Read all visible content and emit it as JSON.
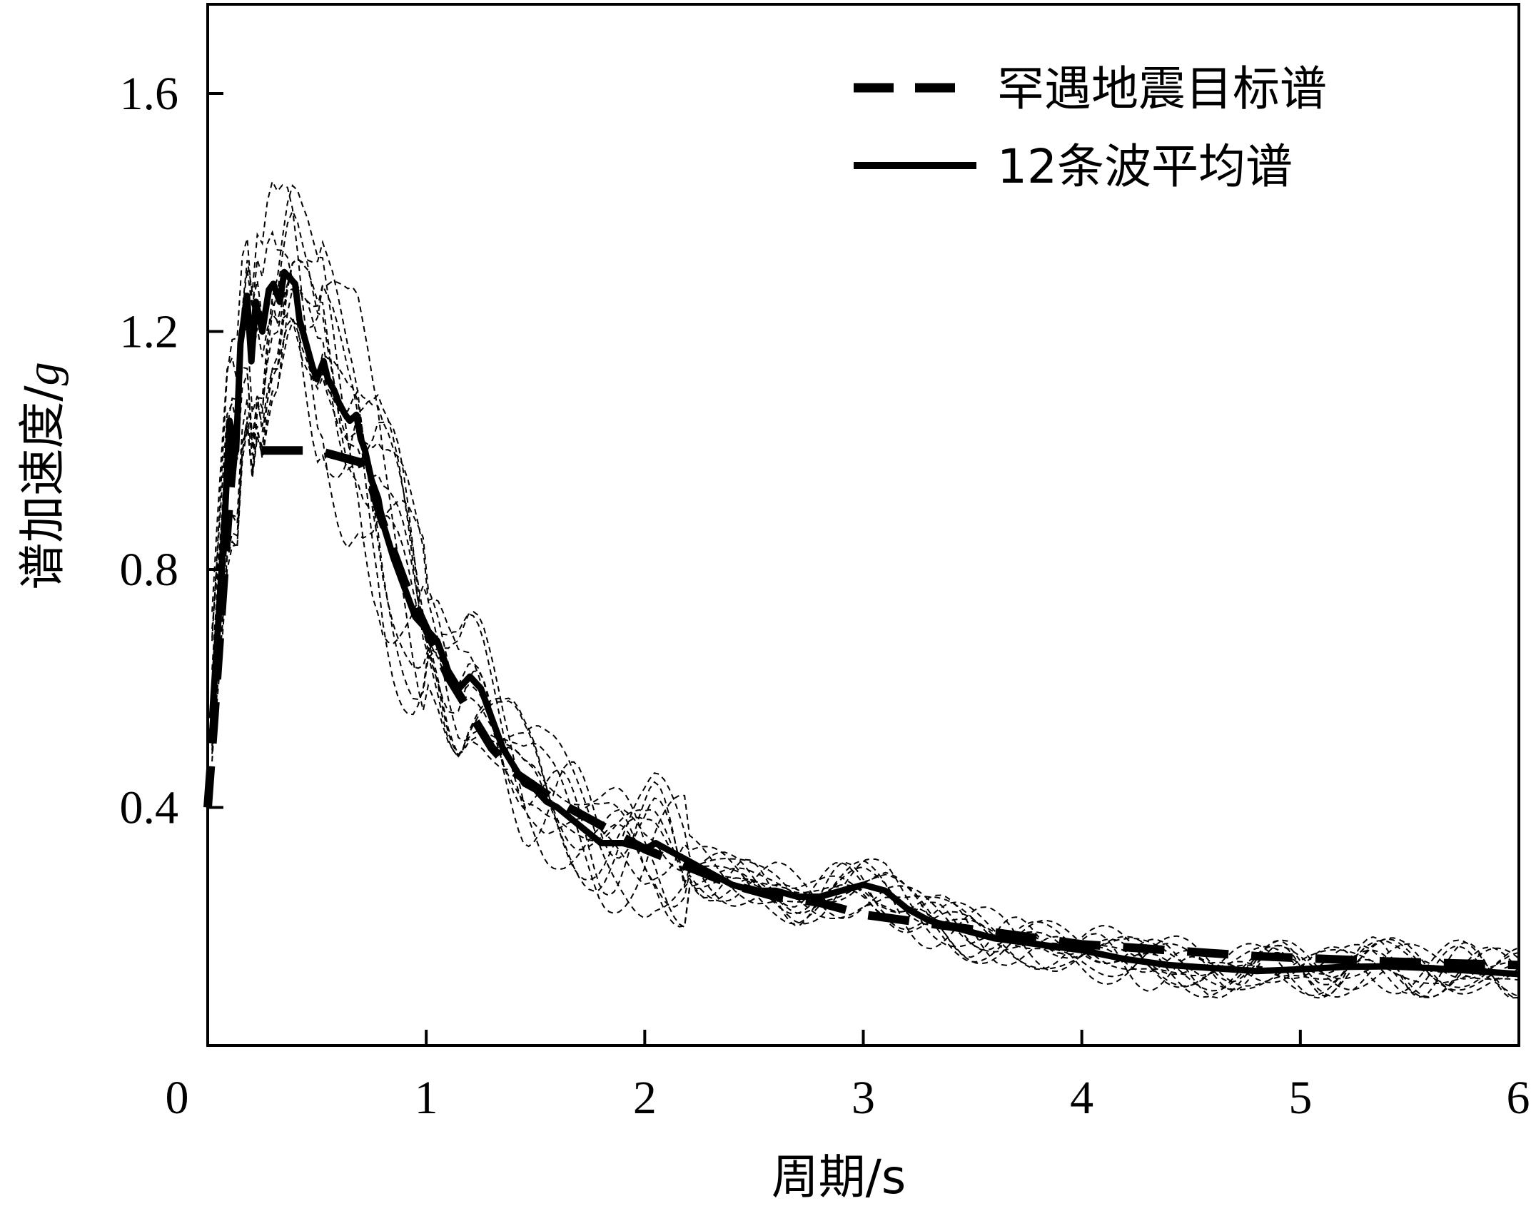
{
  "chart_data": {
    "type": "line",
    "xlabel": "周期/s",
    "ylabel": "谱加速度/",
    "ylabel_italic": "g",
    "xlim": [
      0,
      6
    ],
    "ylim": [
      0,
      1.75
    ],
    "x_ticks": [
      0,
      1,
      2,
      3,
      4,
      5,
      6
    ],
    "x_tick_labels": [
      "0",
      "1",
      "2",
      "3",
      "4",
      "5",
      "6"
    ],
    "y_ticks": [
      0.4,
      0.8,
      1.2,
      1.6
    ],
    "y_tick_labels": [
      "0.4",
      "0.8",
      "1.2",
      "1.6"
    ],
    "grid": false,
    "legend_placement": "top-right",
    "legend": [
      {
        "label": "罕遇地震目标谱",
        "style": "dashed"
      },
      {
        "label": "12条波平均谱",
        "style": "solid"
      }
    ],
    "series": [
      {
        "name": "罕遇地震目标谱",
        "style": "dashed",
        "x": [
          0.0,
          0.03,
          0.06,
          0.09,
          0.1,
          0.12,
          0.14,
          0.2,
          0.3,
          0.4,
          0.5,
          0.6,
          0.7,
          0.75,
          0.8,
          0.9,
          1.0,
          1.1,
          1.2,
          1.3,
          1.4,
          1.6,
          1.8,
          2.0,
          2.2,
          2.4,
          2.6,
          2.8,
          3.0,
          3.2,
          3.4,
          3.6,
          3.8,
          4.0,
          4.2,
          4.4,
          4.6,
          4.8,
          5.0,
          5.2,
          5.4,
          5.6,
          5.8,
          6.0
        ],
        "y": [
          0.4,
          0.55,
          0.71,
          0.87,
          0.92,
          1.0,
          1.0,
          1.0,
          1.0,
          1.0,
          1.0,
          0.99,
          0.98,
          0.94,
          0.88,
          0.78,
          0.7,
          0.62,
          0.56,
          0.5,
          0.46,
          0.41,
          0.37,
          0.33,
          0.3,
          0.27,
          0.25,
          0.24,
          0.22,
          0.21,
          0.2,
          0.19,
          0.18,
          0.17,
          0.165,
          0.16,
          0.155,
          0.15,
          0.147,
          0.144,
          0.141,
          0.139,
          0.137,
          0.135
        ]
      },
      {
        "name": "12条波平均谱",
        "style": "solid",
        "x": [
          0.02,
          0.05,
          0.08,
          0.1,
          0.13,
          0.15,
          0.18,
          0.2,
          0.22,
          0.25,
          0.28,
          0.3,
          0.33,
          0.35,
          0.4,
          0.42,
          0.45,
          0.48,
          0.5,
          0.53,
          0.55,
          0.58,
          0.6,
          0.63,
          0.65,
          0.68,
          0.7,
          0.72,
          0.75,
          0.78,
          0.8,
          0.85,
          0.9,
          0.95,
          1.0,
          1.05,
          1.1,
          1.15,
          1.2,
          1.25,
          1.3,
          1.35,
          1.4,
          1.45,
          1.5,
          1.55,
          1.6,
          1.7,
          1.8,
          1.9,
          2.0,
          2.05,
          2.1,
          2.2,
          2.3,
          2.4,
          2.5,
          2.6,
          2.7,
          2.8,
          2.9,
          3.0,
          3.1,
          3.2,
          3.3,
          3.4,
          3.5,
          3.6,
          3.8,
          4.0,
          4.2,
          4.4,
          4.6,
          4.8,
          5.0,
          5.2,
          5.4,
          5.6,
          5.8,
          6.0
        ],
        "y": [
          0.55,
          0.72,
          0.9,
          1.05,
          1.0,
          1.18,
          1.26,
          1.15,
          1.25,
          1.2,
          1.27,
          1.28,
          1.25,
          1.3,
          1.28,
          1.22,
          1.18,
          1.14,
          1.12,
          1.15,
          1.12,
          1.1,
          1.08,
          1.06,
          1.05,
          1.06,
          1.02,
          1.0,
          0.95,
          0.92,
          0.88,
          0.82,
          0.77,
          0.72,
          0.7,
          0.68,
          0.63,
          0.6,
          0.62,
          0.6,
          0.55,
          0.5,
          0.47,
          0.44,
          0.43,
          0.41,
          0.4,
          0.37,
          0.34,
          0.34,
          0.33,
          0.34,
          0.33,
          0.31,
          0.29,
          0.27,
          0.26,
          0.26,
          0.25,
          0.25,
          0.26,
          0.27,
          0.26,
          0.23,
          0.21,
          0.2,
          0.19,
          0.18,
          0.17,
          0.16,
          0.145,
          0.135,
          0.13,
          0.125,
          0.128,
          0.132,
          0.133,
          0.13,
          0.125,
          0.12
        ]
      }
    ]
  }
}
